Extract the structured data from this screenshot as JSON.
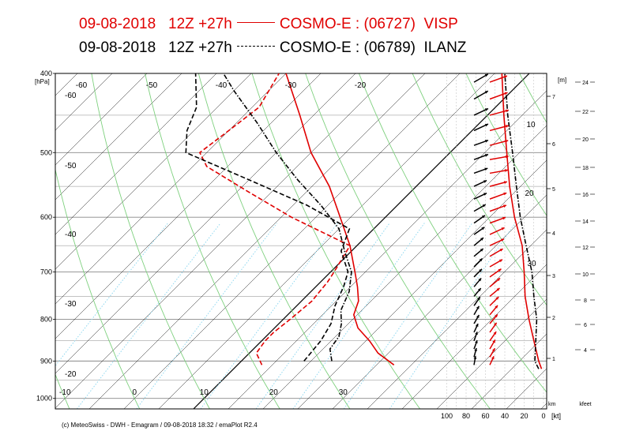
{
  "header": {
    "line1": {
      "date": "09-08-2018",
      "run": "12Z +27h",
      "model": "COSMO-E : (06727)",
      "station": "VISP"
    },
    "line2": {
      "date": "09-08-2018",
      "run": "12Z +27h",
      "model": "COSMO-E : (06789)",
      "station": "ILANZ"
    }
  },
  "footer": "(c) MeteoSwiss - DWH - Emagram / 09-08-2018  18:32 / emaPlot R2.4",
  "colors": {
    "visp": "#e00000",
    "ilanz": "#000000",
    "dry_adiabat": "#7ed07e",
    "mixing_ratio": "#8fd8f0"
  },
  "chart_data": {
    "type": "line",
    "ylabel": "[hPa]",
    "pressure_ticks": [
      400,
      500,
      600,
      700,
      800,
      900,
      1000
    ],
    "pressure_range": [
      400,
      1030
    ],
    "temperature_range_at_bottom": [
      -20,
      45
    ],
    "isotherm_labels_bottom": [
      "-10",
      "0",
      "10",
      "20",
      "30"
    ],
    "isotherm_labels_left": [
      "-20",
      "-30",
      "-40",
      "-50",
      "-60"
    ],
    "isotherm_labels_top": [
      "-60",
      "-50",
      "-40",
      "-30",
      "-20"
    ],
    "height_axis_m": {
      "label": "[m]",
      "ticks": [
        "1",
        "2",
        "3",
        "4",
        "5",
        "6",
        "7"
      ],
      "unit_label": "km"
    },
    "height_axis_kfeet": {
      "ticks": [
        "4",
        "6",
        "8",
        "10",
        "12",
        "14",
        "16",
        "18",
        "20",
        "22",
        "24"
      ],
      "unit_label": "kfeet"
    },
    "wind_axis": {
      "label": "[kt]",
      "ticks": [
        "100",
        "80",
        "60",
        "40",
        "20",
        "0"
      ]
    },
    "wind_profile_labels": [
      "10",
      "20",
      "30"
    ],
    "series": [
      {
        "name": "VISP",
        "color": "#e00000",
        "style": "solid",
        "kind": "temperature",
        "points": [
          [
            910,
            22.5
          ],
          [
            880,
            18.5
          ],
          [
            850,
            15.5
          ],
          [
            820,
            12.0
          ],
          [
            790,
            9.5
          ],
          [
            760,
            8.2
          ],
          [
            730,
            6.0
          ],
          [
            700,
            3.5
          ],
          [
            650,
            -1.0
          ],
          [
            600,
            -6.5
          ],
          [
            550,
            -12.5
          ],
          [
            500,
            -20.0
          ],
          [
            450,
            -27.0
          ],
          [
            400,
            -35.0
          ]
        ]
      },
      {
        "name": "VISP",
        "color": "#e00000",
        "style": "dashed",
        "kind": "dewpoint",
        "points": [
          [
            910,
            3.5
          ],
          [
            880,
            1.0
          ],
          [
            850,
            0.5
          ],
          [
            830,
            0.5
          ],
          [
            800,
            1.0
          ],
          [
            760,
            1.5
          ],
          [
            720,
            1.0
          ],
          [
            700,
            0.5
          ],
          [
            650,
            -1.0
          ],
          [
            600,
            -13.5
          ],
          [
            560,
            -23.0
          ],
          [
            520,
            -33.0
          ],
          [
            500,
            -36.0
          ],
          [
            470,
            -35.0
          ],
          [
            440,
            -34.0
          ],
          [
            400,
            -36.0
          ]
        ]
      },
      {
        "name": "ILANZ",
        "color": "#000000",
        "style": "dashdot",
        "kind": "temperature",
        "points": [
          [
            900,
            13.0
          ],
          [
            870,
            11.0
          ],
          [
            840,
            10.5
          ],
          [
            810,
            9.0
          ],
          [
            780,
            7.0
          ],
          [
            740,
            5.5
          ],
          [
            700,
            3.0
          ],
          [
            660,
            -1.0
          ],
          [
            620,
            -5.0
          ],
          [
            580,
            -11.0
          ],
          [
            540,
            -18.0
          ],
          [
            500,
            -25.0
          ],
          [
            460,
            -32.0
          ],
          [
            420,
            -40.0
          ],
          [
            400,
            -44.0
          ]
        ]
      },
      {
        "name": "ILANZ",
        "color": "#000000",
        "style": "dashed",
        "kind": "dewpoint",
        "points": [
          [
            900,
            9.0
          ],
          [
            850,
            8.5
          ],
          [
            810,
            7.5
          ],
          [
            770,
            5.5
          ],
          [
            730,
            4.0
          ],
          [
            700,
            2.5
          ],
          [
            660,
            -1.5
          ],
          [
            620,
            -3.5
          ],
          [
            580,
            -13.0
          ],
          [
            540,
            -25.0
          ],
          [
            500,
            -38.0
          ],
          [
            470,
            -41.0
          ],
          [
            440,
            -43.0
          ],
          [
            400,
            -48.0
          ]
        ]
      },
      {
        "name": "VISP wind profile",
        "color": "#e00000",
        "style": "solid",
        "kind": "wind_speed",
        "points": [
          [
            920,
            2
          ],
          [
            900,
            5
          ],
          [
            850,
            10
          ],
          [
            800,
            15
          ],
          [
            750,
            19
          ],
          [
            700,
            20
          ],
          [
            650,
            22
          ],
          [
            600,
            30
          ],
          [
            550,
            35
          ],
          [
            500,
            38
          ],
          [
            450,
            41
          ],
          [
            400,
            43
          ]
        ]
      },
      {
        "name": "ILANZ wind profile",
        "color": "#000000",
        "style": "dashdot",
        "kind": "wind_speed",
        "points": [
          [
            920,
            5
          ],
          [
            900,
            9
          ],
          [
            850,
            8
          ],
          [
            800,
            7
          ],
          [
            750,
            10
          ],
          [
            700,
            12
          ],
          [
            650,
            18
          ],
          [
            600,
            24
          ],
          [
            550,
            28
          ],
          [
            500,
            32
          ],
          [
            450,
            37
          ],
          [
            400,
            40
          ]
        ]
      }
    ],
    "wind_barbs": {
      "visp": {
        "color": "#e00000",
        "levels": [
          410,
          430,
          450,
          470,
          490,
          510,
          530,
          550,
          570,
          590,
          610,
          630,
          650,
          670,
          690,
          710,
          730,
          750,
          770,
          790,
          810,
          830,
          850,
          870,
          890,
          910
        ],
        "speed_kt": [
          38,
          40,
          42,
          42,
          40,
          40,
          38,
          36,
          36,
          35,
          32,
          30,
          28,
          26,
          24,
          22,
          20,
          18,
          17,
          16,
          15,
          14,
          12,
          10,
          8,
          6
        ],
        "dir_deg": [
          250,
          250,
          255,
          255,
          255,
          260,
          260,
          255,
          250,
          250,
          250,
          245,
          245,
          240,
          240,
          235,
          230,
          230,
          225,
          220,
          220,
          215,
          215,
          210,
          210,
          205
        ]
      },
      "ilanz": {
        "color": "#000000",
        "levels": [
          410,
          430,
          450,
          470,
          490,
          510,
          530,
          550,
          570,
          590,
          610,
          630,
          650,
          670,
          690,
          710,
          730,
          750,
          770,
          790,
          810,
          830,
          850,
          870,
          890,
          910
        ],
        "speed_kt": [
          30,
          30,
          28,
          28,
          26,
          26,
          24,
          22,
          22,
          20,
          20,
          18,
          16,
          15,
          14,
          12,
          12,
          10,
          10,
          8,
          8,
          6,
          6,
          5,
          5,
          4
        ],
        "dir_deg": [
          240,
          240,
          245,
          245,
          250,
          250,
          250,
          245,
          245,
          240,
          235,
          235,
          230,
          230,
          225,
          225,
          220,
          220,
          215,
          210,
          210,
          205,
          200,
          200,
          195,
          190
        ]
      }
    }
  }
}
